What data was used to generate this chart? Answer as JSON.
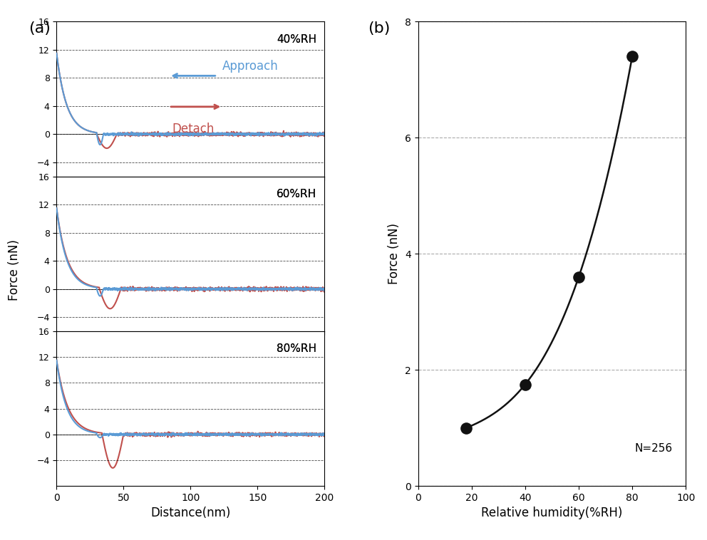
{
  "panel_b": {
    "x": [
      18,
      40,
      60,
      80
    ],
    "y": [
      1.0,
      1.75,
      3.6,
      7.4
    ],
    "xlabel": "Relative humidity(%RH)",
    "ylabel": "Force (nN)",
    "xlim": [
      0,
      100
    ],
    "ylim": [
      0,
      8
    ],
    "yticks": [
      0,
      2,
      4,
      6,
      8
    ],
    "xticks": [
      0,
      20,
      40,
      60,
      80,
      100
    ],
    "grid_color": "#aaaaaa",
    "line_color": "#111111",
    "marker_color": "#111111",
    "annotation": "N=256",
    "title": "(b)"
  },
  "panel_a": {
    "title": "(a)",
    "ylabel": "Force (nN)",
    "xlabel": "Distance(nm)",
    "xlim": [
      0,
      200
    ],
    "xticks": [
      0,
      50,
      100,
      150,
      200
    ],
    "subplots": [
      {
        "label": "40%RH",
        "ylim": [
          -6,
          16
        ],
        "yticks": [
          -4,
          0,
          4,
          8,
          12,
          16
        ],
        "approach_color": "#5b9bd5",
        "detach_color": "#c0504d",
        "approach_min_depth": -1.5,
        "detach_min_depth": -2.0,
        "approach_x_contact": 35,
        "detach_x_end": 45,
        "detach_min_x": 40
      },
      {
        "label": "60%RH",
        "ylim": [
          -6,
          16
        ],
        "yticks": [
          -4,
          0,
          4,
          8,
          12,
          16
        ],
        "approach_color": "#5b9bd5",
        "detach_color": "#c0504d",
        "approach_min_depth": -1.0,
        "detach_min_depth": -2.8,
        "approach_x_contact": 35,
        "detach_x_end": 48,
        "detach_min_x": 42
      },
      {
        "label": "80%RH",
        "ylim": [
          -8,
          16
        ],
        "yticks": [
          -4,
          0,
          4,
          8,
          12,
          16
        ],
        "approach_color": "#5b9bd5",
        "detach_color": "#c0504d",
        "approach_min_depth": -0.5,
        "detach_min_depth": -5.2,
        "approach_x_contact": 35,
        "detach_x_end": 50,
        "detach_min_x": 44
      }
    ]
  },
  "bg_color": "#ffffff",
  "dpi": 100
}
